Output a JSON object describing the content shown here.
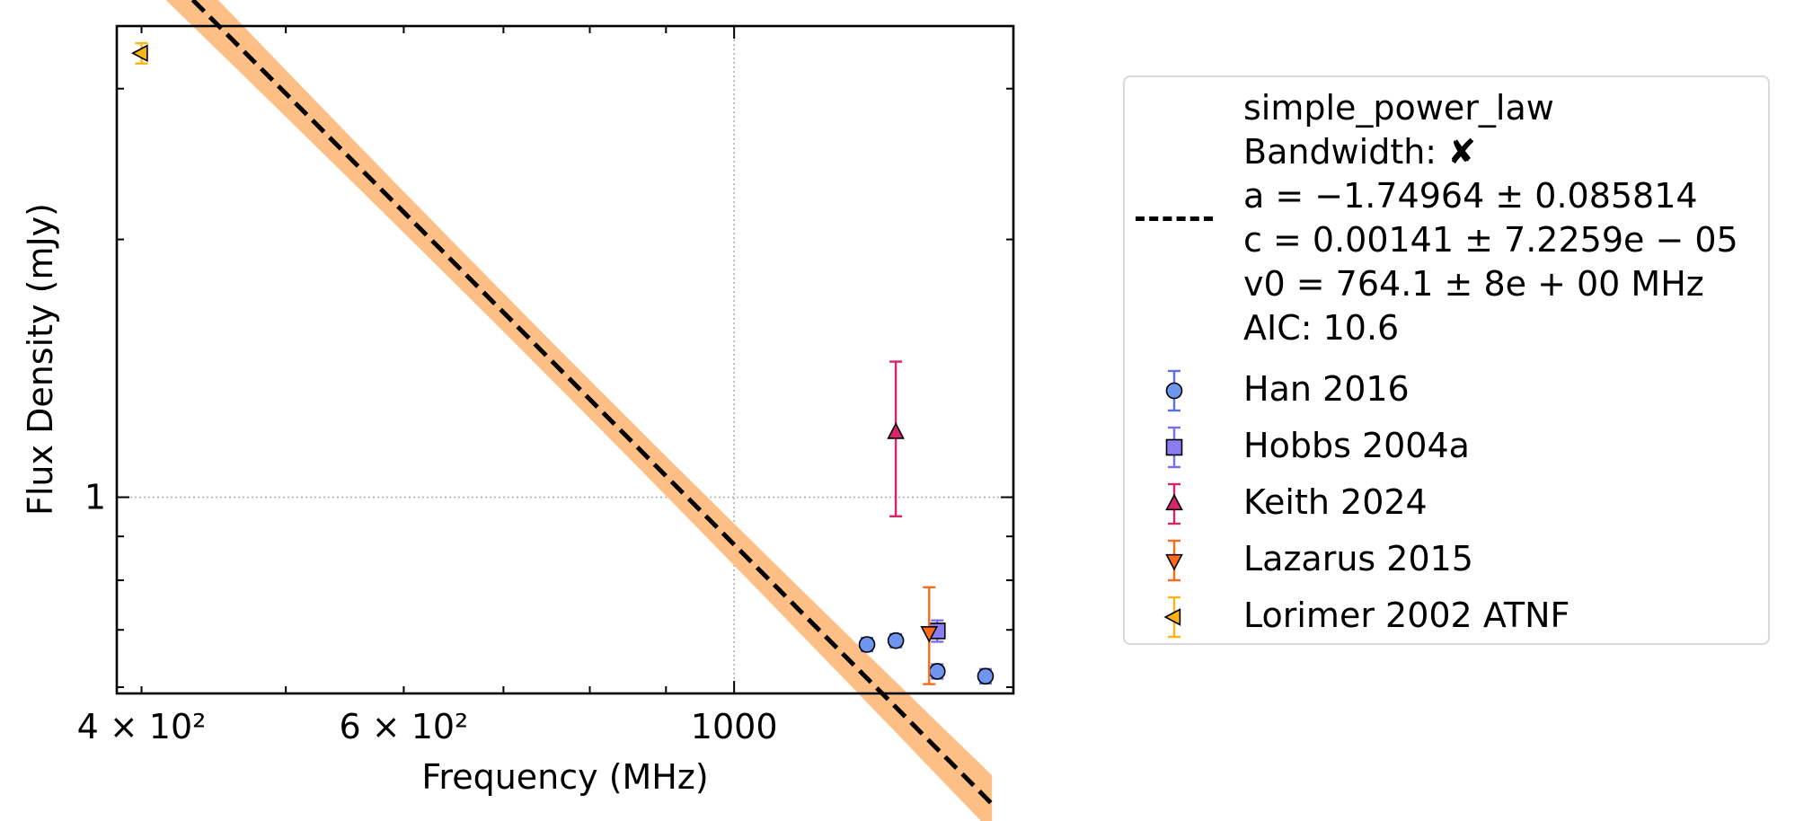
{
  "chart_data": {
    "type": "scatter",
    "title": "",
    "xlabel": "Frequency (MHz)",
    "ylabel": "Flux Density (mJy)",
    "x_scale": "log",
    "y_scale": "log",
    "xlim": [
      385,
      1540
    ],
    "ylim": [
      0.59,
      3.55
    ],
    "x_ticks": [
      {
        "value": 400,
        "label": "4 × 10²"
      },
      {
        "value": 600,
        "label": "6 × 10²"
      },
      {
        "value": 1000,
        "label": "1000"
      }
    ],
    "y_ticks": [
      {
        "value": 1,
        "label": "1"
      }
    ],
    "grid": true,
    "legend_position": "outside-right",
    "fit": {
      "model": "simple_power_law",
      "bandwidth_label": "Bandwidth:",
      "bandwidth_mark": "✘",
      "a_line": "a = −1.74964 ± 0.085814",
      "c_line": "c = 0.00141 ± 7.2259e − 05",
      "v0_line": "v0 = 764.1 ± 8e + 00 MHz",
      "aic_line": "AIC: 10.6",
      "a": -1.74964,
      "a_err": 0.085814,
      "c": 0.00141,
      "c_err": 7.2259e-05,
      "v0": 764.1,
      "v0_err": 8,
      "aic": 10.6,
      "line_color": "#000000",
      "band_color": "#fdbf85",
      "x_range": [
        400,
        1490
      ]
    },
    "series": [
      {
        "name": "Han 2016",
        "marker": "circle",
        "color": "#6f96ef",
        "errcolor": "#5a6fe0",
        "points": [
          {
            "x": 1228,
            "y": 0.673,
            "err": 0.012
          },
          {
            "x": 1284,
            "y": 0.68,
            "err": 0.012
          },
          {
            "x": 1369,
            "y": 0.626,
            "err": 0.012
          },
          {
            "x": 1475,
            "y": 0.618,
            "err": 0.012
          }
        ]
      },
      {
        "name": "Hobbs 2004a",
        "marker": "square",
        "color": "#8a7cf2",
        "errcolor": "#7a6ef0",
        "points": [
          {
            "x": 1369,
            "y": 0.698,
            "err": 0.02
          }
        ]
      },
      {
        "name": "Keith 2024",
        "marker": "triangle-up",
        "color": "#d6246e",
        "errcolor": "#d6246e",
        "points": [
          {
            "x": 1284,
            "y": 1.19,
            "err_low": 0.24,
            "err_high": 0.25
          }
        ]
      },
      {
        "name": "Lazarus 2015",
        "marker": "triangle-down",
        "color": "#fe6a1b",
        "errcolor": "#fe6a1b",
        "points": [
          {
            "x": 1352,
            "y": 0.695,
            "err_low": 0.09,
            "err_high": 0.09
          }
        ]
      },
      {
        "name": "Lorimer 2002 ATNF",
        "marker": "triangle-left",
        "color": "#fbb417",
        "errcolor": "#fbb417",
        "points": [
          {
            "x": 400,
            "y": 3.3,
            "err": 0.09
          }
        ]
      }
    ]
  }
}
